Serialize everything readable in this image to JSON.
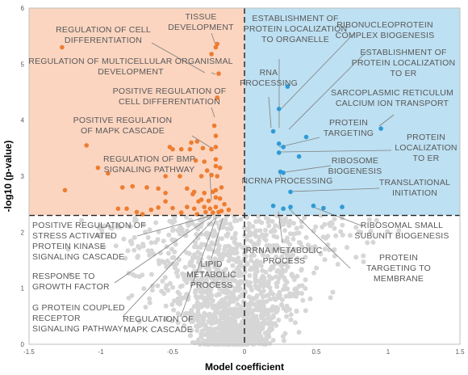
{
  "chart_data": {
    "type": "scatter",
    "title": "",
    "xlabel": "Model coefficient",
    "ylabel": "-log10 (p-value)",
    "xlim": [
      -1.5,
      1.5
    ],
    "ylim": [
      0,
      6
    ],
    "xticks": [
      "-1.5",
      "-1",
      "-0.5",
      "0",
      "0.5",
      "1",
      "1.5"
    ],
    "yticks": [
      "0",
      "1",
      "2",
      "3",
      "4",
      "5",
      "6"
    ],
    "grid": false,
    "thresholds": {
      "x": 0,
      "y": 2.3
    },
    "region_colors": {
      "upper_left": "#fbd5c0",
      "upper_right": "#bde0f2"
    },
    "series": [
      {
        "color": "#ed7d31",
        "points": [
          [
            -1.27,
            5.3
          ],
          [
            -0.2,
            5.3
          ],
          [
            -0.19,
            5.36
          ],
          [
            -0.23,
            5.18
          ],
          [
            -0.18,
            4.83
          ],
          [
            -0.19,
            4.4
          ],
          [
            -0.21,
            3.9
          ],
          [
            -0.2,
            3.72
          ],
          [
            -0.33,
            3.62
          ],
          [
            -0.37,
            3.6
          ],
          [
            -0.2,
            3.52
          ],
          [
            -0.23,
            3.48
          ],
          [
            -0.52,
            3.52
          ],
          [
            -0.5,
            3.48
          ],
          [
            -0.44,
            3.48
          ],
          [
            -0.38,
            3.48
          ],
          [
            -1.1,
            3.55
          ],
          [
            -0.29,
            3.5
          ],
          [
            -0.34,
            3.28
          ],
          [
            -0.28,
            3.26
          ],
          [
            -0.2,
            3.3
          ],
          [
            -0.2,
            3.18
          ],
          [
            -0.26,
            3.1
          ],
          [
            -0.17,
            3.15
          ],
          [
            -0.23,
            3.02
          ],
          [
            -0.3,
            3.0
          ],
          [
            -0.19,
            3.0
          ],
          [
            -1.02,
            3.15
          ],
          [
            -0.95,
            3.05
          ],
          [
            -0.55,
            3.0
          ],
          [
            -0.45,
            3.0
          ],
          [
            -0.85,
            2.8
          ],
          [
            -0.78,
            2.82
          ],
          [
            -0.68,
            2.8
          ],
          [
            -0.6,
            2.78
          ],
          [
            -0.4,
            2.78
          ],
          [
            -0.35,
            2.72
          ],
          [
            -0.28,
            2.7
          ],
          [
            -0.22,
            2.72
          ],
          [
            -0.2,
            2.75
          ],
          [
            -0.16,
            2.8
          ],
          [
            -1.25,
            2.75
          ],
          [
            -0.55,
            2.7
          ],
          [
            -0.36,
            2.68
          ],
          [
            -0.3,
            2.58
          ],
          [
            -0.25,
            2.56
          ],
          [
            -0.17,
            2.6
          ],
          [
            -0.55,
            2.55
          ],
          [
            -0.88,
            2.42
          ],
          [
            -0.82,
            2.42
          ],
          [
            -0.65,
            2.4
          ],
          [
            -0.6,
            2.44
          ],
          [
            -0.5,
            2.43
          ],
          [
            -0.35,
            2.42
          ],
          [
            -0.28,
            2.45
          ],
          [
            -0.24,
            2.42
          ],
          [
            -0.2,
            2.45
          ],
          [
            -0.16,
            2.38
          ],
          [
            -0.11,
            2.4
          ],
          [
            -0.22,
            2.35
          ],
          [
            -0.18,
            2.36
          ],
          [
            -0.33,
            2.32
          ],
          [
            -0.44,
            2.35
          ],
          [
            -0.71,
            2.32
          ],
          [
            -0.32,
            2.55
          ],
          [
            -0.2,
            2.62
          ],
          [
            -0.14,
            2.5
          ],
          [
            -0.27,
            2.36
          ],
          [
            -0.4,
            2.45
          ],
          [
            -0.75,
            2.36
          ]
        ]
      },
      {
        "color": "#2e9ad6",
        "points": [
          [
            0.3,
            4.6
          ],
          [
            0.24,
            4.2
          ],
          [
            0.2,
            3.8
          ],
          [
            0.43,
            3.7
          ],
          [
            0.95,
            3.85
          ],
          [
            0.24,
            3.58
          ],
          [
            0.27,
            3.52
          ],
          [
            0.24,
            3.42
          ],
          [
            0.38,
            3.35
          ],
          [
            0.25,
            3.08
          ],
          [
            0.27,
            3.06
          ],
          [
            0.32,
            2.72
          ],
          [
            0.2,
            2.47
          ],
          [
            0.27,
            2.42
          ],
          [
            0.32,
            2.45
          ],
          [
            0.48,
            2.47
          ],
          [
            0.55,
            2.43
          ],
          [
            0.68,
            2.45
          ]
        ]
      }
    ],
    "annotations": [
      {
        "lines": [
          "TISSUE",
          "DEVELOPMENT"
        ]
      },
      {
        "lines": [
          "REGULATION OF CELL",
          "DIFFERENTIATION"
        ]
      },
      {
        "lines": [
          "REGULATION OF MULTICELLULAR ORGANISMAL",
          "DEVELOPMENT"
        ]
      },
      {
        "lines": [
          "POSITIVE REGULATION OF",
          "CELL DIFFERENTIATION"
        ]
      },
      {
        "lines": [
          "POSITIVE REGULATION",
          "OF MAPK CASCADE"
        ]
      },
      {
        "lines": [
          "REGULATION OF BMP",
          "SIGNALING PATHWAY"
        ]
      },
      {
        "lines": [
          "POSITIVE REGULATION OF",
          "STRESS ACTIVATED",
          "PROTEIN KINASE",
          "SIGNALING CASCADE"
        ]
      },
      {
        "lines": [
          "RESPONSE TO",
          "GROWTH FACTOR"
        ]
      },
      {
        "lines": [
          "G PROTEIN COUPLED",
          "RECEPTOR",
          "SIGNALING PATHWAY"
        ]
      },
      {
        "lines": [
          "REGULATION OF",
          "MAPK CASCADE"
        ]
      },
      {
        "lines": [
          "LIPID",
          "METABOLIC",
          "PROCESS"
        ]
      },
      {
        "lines": [
          "ESTABLISHMENT OF",
          "PROTEIN LOCALIZATION",
          "TO ORGANELLE"
        ]
      },
      {
        "lines": [
          "RIBONUCLEOPROTEIN",
          "COMPLEX BIOGENESIS"
        ]
      },
      {
        "lines": [
          "ESTABLISHMENT OF",
          "PROTEIN LOCALIZATION",
          "TO ER"
        ]
      },
      {
        "lines": [
          "RNA",
          "PROCESSING"
        ]
      },
      {
        "lines": [
          "SARCOPLASMIC RETICULUM",
          "CALCIUM ION TRANSPORT"
        ]
      },
      {
        "lines": [
          "PROTEIN",
          "TARGETING"
        ]
      },
      {
        "lines": [
          "PROTEIN",
          "LOCALIZATION",
          "TO ER"
        ]
      },
      {
        "lines": [
          "RIBOSOME",
          "BIOGENESIS"
        ]
      },
      {
        "lines": [
          "NCRNA PROCESSING"
        ]
      },
      {
        "lines": [
          "TRANSLATIONAL",
          "INITIATION"
        ]
      },
      {
        "lines": [
          "RIBOSOMAL SMALL",
          "SUBUNIT BIOGENESIS"
        ]
      },
      {
        "lines": [
          "RRNA METABOLIC",
          "PROCESS"
        ]
      },
      {
        "lines": [
          "PROTEIN",
          "TARGETING TO",
          "MEMBRANE"
        ]
      }
    ],
    "background_point_color": "#d6d6d6"
  }
}
